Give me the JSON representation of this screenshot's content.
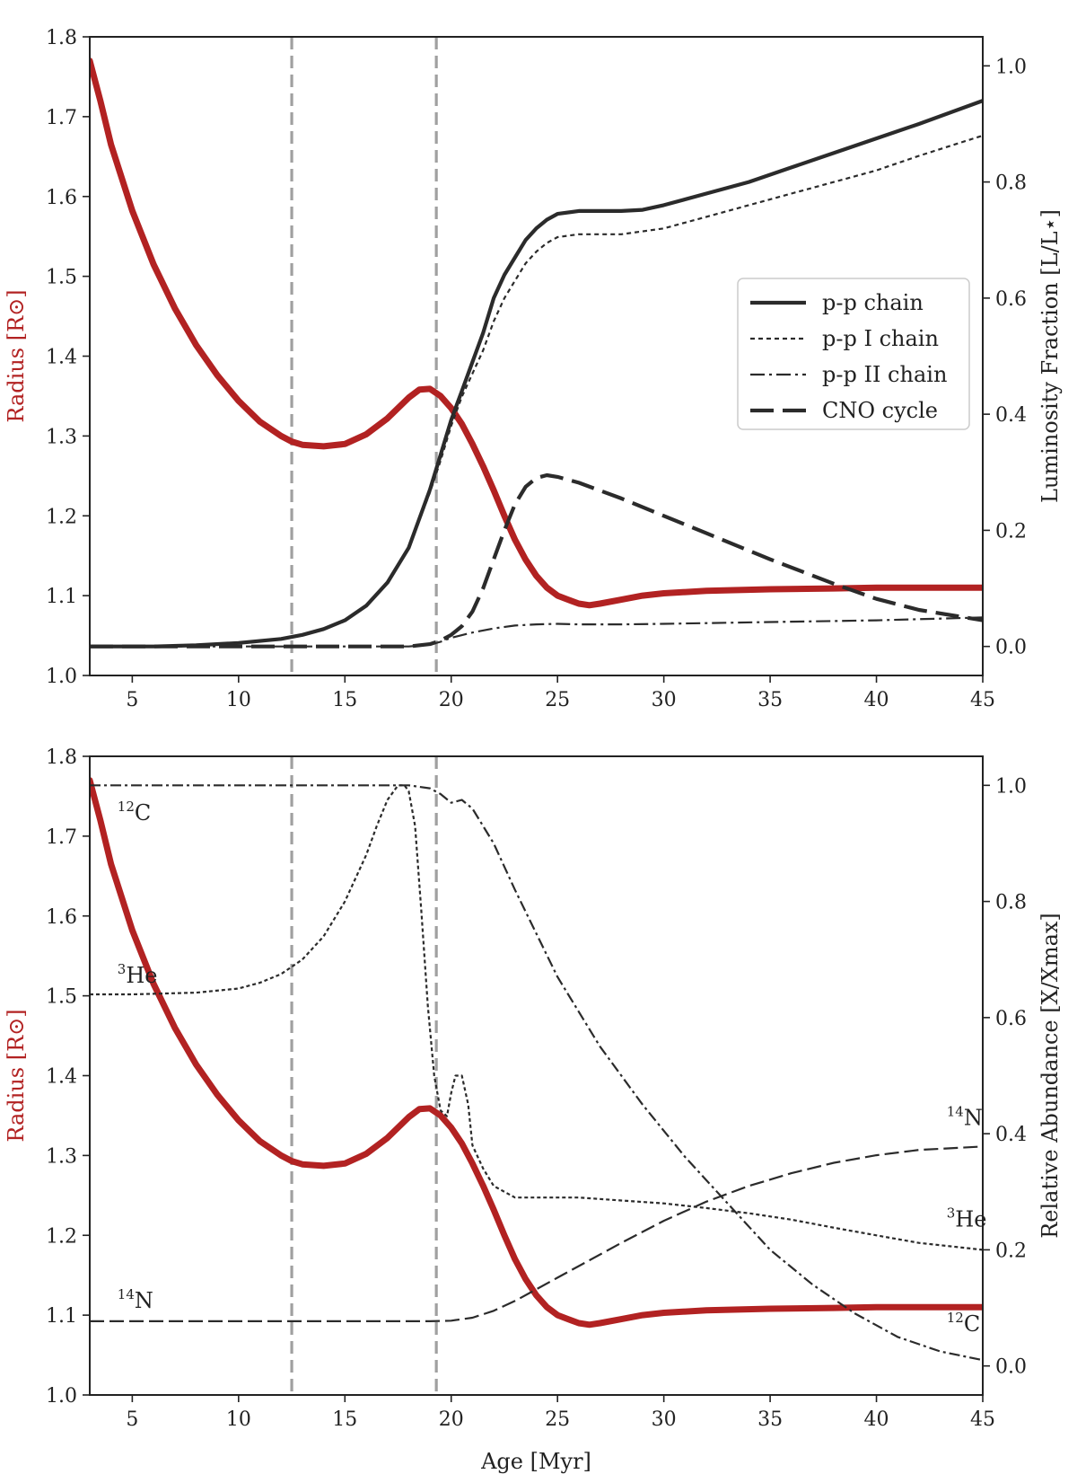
{
  "colors": {
    "radius": "#b22222",
    "dark": "#2b2b2b",
    "vline": "#a0a0a0"
  },
  "shared": {
    "vlines_myr": [
      12.5,
      19.3
    ],
    "xlim": [
      3,
      45
    ],
    "xticks": [
      5,
      10,
      15,
      20,
      25,
      30,
      35,
      40,
      45
    ],
    "xlabel": "Age [Myr]",
    "radius": {
      "x": [
        3,
        3.5,
        4,
        5,
        6,
        7,
        8,
        9,
        10,
        11,
        12,
        12.5,
        13,
        14,
        15,
        16,
        17,
        18,
        18.5,
        19,
        19.5,
        20,
        20.5,
        21,
        21.5,
        22,
        22.5,
        23,
        23.5,
        24,
        24.5,
        25,
        25.5,
        26,
        26.5,
        27,
        28,
        29,
        30,
        32,
        35,
        38,
        40,
        45
      ],
      "y": [
        1.77,
        1.72,
        1.665,
        1.582,
        1.515,
        1.46,
        1.414,
        1.376,
        1.344,
        1.318,
        1.3,
        1.293,
        1.289,
        1.287,
        1.29,
        1.302,
        1.322,
        1.348,
        1.358,
        1.359,
        1.35,
        1.335,
        1.315,
        1.29,
        1.262,
        1.232,
        1.2,
        1.17,
        1.145,
        1.125,
        1.11,
        1.1,
        1.095,
        1.09,
        1.088,
        1.09,
        1.095,
        1.1,
        1.103,
        1.106,
        1.108,
        1.109,
        1.11,
        1.11
      ]
    }
  },
  "chart_data": [
    {
      "type": "line",
      "panel": "top",
      "ylabel_left": "Radius [R⊙]",
      "ylabel_right": "Luminosity Fraction [L/L⋆]",
      "ylim_left": [
        1.0,
        1.8
      ],
      "ylim_right": [
        -0.05,
        1.05
      ],
      "yticks_left": [
        "1.0",
        "1.1",
        "1.2",
        "1.3",
        "1.4",
        "1.5",
        "1.6",
        "1.7",
        "1.8"
      ],
      "yticks_right": [
        "0.0",
        "0.2",
        "0.4",
        "0.6",
        "0.8",
        "1.0"
      ],
      "legend": [
        "p-p chain",
        "p-p I chain",
        "p-p II chain",
        "CNO cycle"
      ],
      "series": [
        {
          "name": "p-p chain",
          "x": [
            3,
            6,
            8,
            10,
            12,
            13,
            14,
            15,
            16,
            17,
            18,
            19,
            19.5,
            20,
            20.5,
            21,
            21.5,
            22,
            22.5,
            23,
            23.5,
            24,
            24.5,
            25,
            26,
            27,
            28,
            29,
            30,
            32,
            34,
            36,
            38,
            40,
            42,
            45
          ],
          "y": [
            0.0,
            0.0,
            0.002,
            0.006,
            0.013,
            0.02,
            0.03,
            0.045,
            0.07,
            0.11,
            0.17,
            0.27,
            0.33,
            0.39,
            0.44,
            0.49,
            0.54,
            0.6,
            0.64,
            0.67,
            0.7,
            0.72,
            0.735,
            0.745,
            0.75,
            0.75,
            0.75,
            0.752,
            0.76,
            0.78,
            0.8,
            0.825,
            0.85,
            0.875,
            0.9,
            0.94
          ]
        },
        {
          "name": "p-p I chain",
          "x": [
            3,
            6,
            8,
            10,
            12,
            13,
            14,
            15,
            16,
            17,
            18,
            19,
            19.5,
            20,
            20.5,
            21,
            21.5,
            22,
            22.5,
            23,
            23.5,
            24,
            24.5,
            25,
            26,
            28,
            30,
            32,
            34,
            36,
            38,
            40,
            42,
            45
          ],
          "y": [
            0.0,
            0.0,
            0.002,
            0.006,
            0.013,
            0.02,
            0.03,
            0.045,
            0.07,
            0.11,
            0.17,
            0.265,
            0.32,
            0.38,
            0.43,
            0.47,
            0.51,
            0.56,
            0.6,
            0.63,
            0.66,
            0.68,
            0.695,
            0.705,
            0.71,
            0.71,
            0.72,
            0.74,
            0.76,
            0.78,
            0.8,
            0.82,
            0.845,
            0.88
          ]
        },
        {
          "name": "p-p II chain",
          "x": [
            3,
            10,
            15,
            18,
            19,
            19.5,
            20,
            21,
            22,
            23,
            24,
            25,
            26,
            28,
            30,
            35,
            40,
            45
          ],
          "y": [
            0.0,
            0.0,
            0.0,
            0.0,
            0.003,
            0.008,
            0.015,
            0.024,
            0.031,
            0.036,
            0.038,
            0.039,
            0.038,
            0.038,
            0.039,
            0.042,
            0.045,
            0.05
          ]
        },
        {
          "name": "CNO cycle",
          "x": [
            3,
            10,
            15,
            18,
            19,
            19.5,
            20,
            20.5,
            21,
            21.5,
            22,
            22.5,
            23,
            23.5,
            24,
            24.5,
            25,
            26,
            28,
            30,
            32,
            35,
            38,
            40,
            42,
            45
          ],
          "y": [
            0.0,
            0.0,
            0.0,
            0.0,
            0.004,
            0.01,
            0.02,
            0.035,
            0.06,
            0.1,
            0.15,
            0.2,
            0.245,
            0.275,
            0.29,
            0.295,
            0.292,
            0.282,
            0.255,
            0.225,
            0.195,
            0.15,
            0.108,
            0.082,
            0.063,
            0.045
          ]
        }
      ]
    },
    {
      "type": "line",
      "panel": "bottom",
      "ylabel_left": "Radius [R⊙]",
      "ylabel_right": "Relative Abundance [X/Xmax]",
      "ylim_left": [
        1.0,
        1.8
      ],
      "ylim_right": [
        -0.05,
        1.05
      ],
      "yticks_left": [
        "1.0",
        "1.1",
        "1.2",
        "1.3",
        "1.4",
        "1.5",
        "1.6",
        "1.7",
        "1.8"
      ],
      "yticks_right": [
        "0.0",
        "0.2",
        "0.4",
        "0.6",
        "0.8",
        "1.0"
      ],
      "annotations": [
        {
          "sup": "12",
          "text": "C",
          "x": 4.3,
          "y": 0.94,
          "anchor": "start"
        },
        {
          "sup": "3",
          "text": "He",
          "x": 4.3,
          "y": 0.66,
          "anchor": "start"
        },
        {
          "sup": "14",
          "text": "N",
          "x": 4.3,
          "y": 0.1,
          "anchor": "start"
        },
        {
          "sup": "14",
          "text": "N",
          "x": 43.3,
          "y": 0.415,
          "anchor": "start"
        },
        {
          "sup": "3",
          "text": "He",
          "x": 43.3,
          "y": 0.24,
          "anchor": "start"
        },
        {
          "sup": "12",
          "text": "C",
          "x": 43.3,
          "y": 0.06,
          "anchor": "start"
        }
      ],
      "series": [
        {
          "name": "12C",
          "x": [
            3,
            10,
            15,
            18,
            19,
            19.5,
            20,
            20.5,
            21,
            22,
            23,
            25,
            27,
            29,
            31,
            33,
            35,
            37,
            39,
            41,
            43,
            45
          ],
          "y": [
            1.0,
            1.0,
            1.0,
            1.0,
            0.995,
            0.985,
            0.97,
            0.975,
            0.96,
            0.9,
            0.82,
            0.67,
            0.55,
            0.45,
            0.36,
            0.28,
            0.2,
            0.14,
            0.09,
            0.05,
            0.025,
            0.01
          ]
        },
        {
          "name": "3He",
          "x": [
            3,
            5,
            8,
            10,
            11,
            12,
            13,
            14,
            15,
            16,
            16.5,
            17,
            17.5,
            17.8,
            18,
            18.3,
            18.6,
            18.9,
            19.2,
            19.5,
            19.8,
            20,
            20.2,
            20.5,
            20.8,
            21,
            21.5,
            22,
            22.5,
            23,
            24,
            26,
            28,
            30,
            32,
            34,
            36,
            38,
            40,
            42,
            45
          ],
          "y": [
            0.64,
            0.64,
            0.643,
            0.65,
            0.66,
            0.675,
            0.7,
            0.74,
            0.8,
            0.88,
            0.93,
            0.975,
            1.0,
            1.0,
            0.99,
            0.93,
            0.78,
            0.62,
            0.5,
            0.44,
            0.43,
            0.47,
            0.5,
            0.5,
            0.45,
            0.38,
            0.34,
            0.31,
            0.3,
            0.29,
            0.29,
            0.29,
            0.285,
            0.28,
            0.272,
            0.263,
            0.252,
            0.238,
            0.225,
            0.212,
            0.2
          ]
        },
        {
          "name": "14N",
          "x": [
            3,
            10,
            15,
            19,
            20,
            21,
            22,
            23,
            24,
            25,
            26,
            28,
            30,
            32,
            34,
            36,
            38,
            40,
            42,
            45
          ],
          "y": [
            0.077,
            0.077,
            0.077,
            0.077,
            0.078,
            0.083,
            0.095,
            0.112,
            0.132,
            0.152,
            0.172,
            0.212,
            0.25,
            0.283,
            0.31,
            0.332,
            0.35,
            0.363,
            0.372,
            0.378
          ]
        }
      ]
    }
  ]
}
